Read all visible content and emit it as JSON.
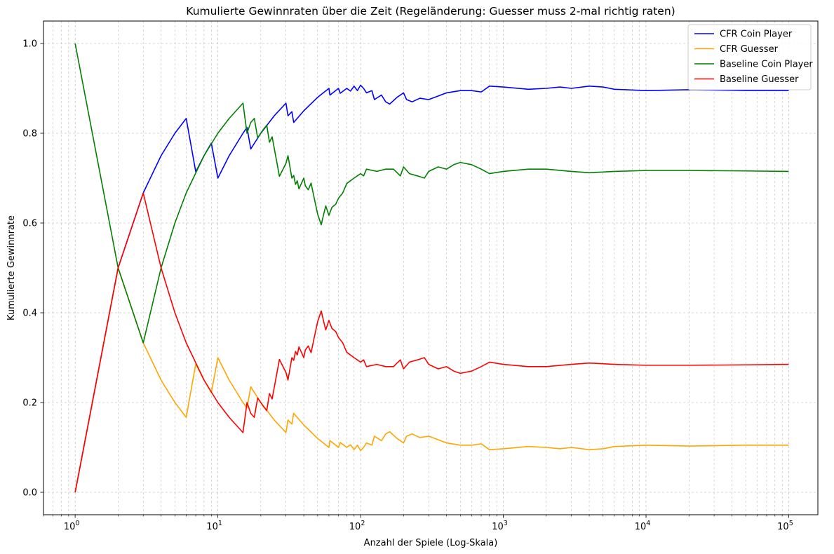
{
  "chart_data": {
    "type": "line",
    "title": "Kumulierte Gewinnraten über die Zeit (Regeländerung: Guesser muss 2-mal richtig raten)",
    "xlabel": "Anzahl der Spiele (Log-Skala)",
    "ylabel": "Kumulierte Gewinnrate",
    "xscale": "log",
    "xlim": [
      0.6,
      160000
    ],
    "ylim": [
      -0.05,
      1.05
    ],
    "x_ticks": [
      {
        "value": 1,
        "label": "10",
        "exp": "0"
      },
      {
        "value": 10,
        "label": "10",
        "exp": "1"
      },
      {
        "value": 100,
        "label": "10",
        "exp": "2"
      },
      {
        "value": 1000,
        "label": "10",
        "exp": "3"
      },
      {
        "value": 10000,
        "label": "10",
        "exp": "4"
      },
      {
        "value": 100000,
        "label": "10",
        "exp": "5"
      }
    ],
    "y_ticks": [
      {
        "value": 0.0,
        "label": "0.0"
      },
      {
        "value": 0.2,
        "label": "0.2"
      },
      {
        "value": 0.4,
        "label": "0.4"
      },
      {
        "value": 0.6,
        "label": "0.6"
      },
      {
        "value": 0.8,
        "label": "0.8"
      },
      {
        "value": 1.0,
        "label": "1.0"
      }
    ],
    "grid": true,
    "legend_position": "top-right",
    "series": [
      {
        "name": "CFR Coin Player",
        "color": "#0000ff",
        "points": [
          [
            1,
            0
          ],
          [
            2,
            0.5
          ],
          [
            3,
            0.667
          ],
          [
            4,
            0.75
          ],
          [
            5,
            0.8
          ],
          [
            6,
            0.833
          ],
          [
            7,
            0.714
          ],
          [
            8,
            0.75
          ],
          [
            9,
            0.778
          ],
          [
            10,
            0.7
          ],
          [
            12,
            0.75
          ],
          [
            15,
            0.8
          ],
          [
            16,
            0.813
          ],
          [
            17,
            0.765
          ],
          [
            20,
            0.8
          ],
          [
            25,
            0.84
          ],
          [
            30,
            0.867
          ],
          [
            31,
            0.839
          ],
          [
            33,
            0.848
          ],
          [
            34,
            0.824
          ],
          [
            40,
            0.85
          ],
          [
            50,
            0.88
          ],
          [
            60,
            0.9
          ],
          [
            61,
            0.885
          ],
          [
            70,
            0.9
          ],
          [
            72,
            0.889
          ],
          [
            80,
            0.9
          ],
          [
            85,
            0.894
          ],
          [
            90,
            0.905
          ],
          [
            95,
            0.895
          ],
          [
            100,
            0.907
          ],
          [
            105,
            0.9
          ],
          [
            110,
            0.89
          ],
          [
            120,
            0.895
          ],
          [
            125,
            0.875
          ],
          [
            140,
            0.885
          ],
          [
            150,
            0.87
          ],
          [
            160,
            0.865
          ],
          [
            180,
            0.88
          ],
          [
            200,
            0.89
          ],
          [
            210,
            0.875
          ],
          [
            230,
            0.87
          ],
          [
            260,
            0.878
          ],
          [
            300,
            0.875
          ],
          [
            350,
            0.883
          ],
          [
            400,
            0.89
          ],
          [
            500,
            0.895
          ],
          [
            600,
            0.895
          ],
          [
            700,
            0.892
          ],
          [
            800,
            0.905
          ],
          [
            1000,
            0.903
          ],
          [
            1500,
            0.898
          ],
          [
            2000,
            0.9
          ],
          [
            2500,
            0.903
          ],
          [
            3000,
            0.9
          ],
          [
            4000,
            0.905
          ],
          [
            5000,
            0.903
          ],
          [
            6000,
            0.898
          ],
          [
            10000,
            0.895
          ],
          [
            20000,
            0.897
          ],
          [
            50000,
            0.895
          ],
          [
            100000,
            0.895
          ]
        ]
      },
      {
        "name": "CFR Guesser",
        "color": "#ffa500",
        "points": [
          [
            1,
            0
          ],
          [
            2,
            0.5
          ],
          [
            3,
            0.333
          ],
          [
            4,
            0.25
          ],
          [
            5,
            0.2
          ],
          [
            6,
            0.167
          ],
          [
            7,
            0.286
          ],
          [
            8,
            0.25
          ],
          [
            9,
            0.222
          ],
          [
            10,
            0.3
          ],
          [
            12,
            0.25
          ],
          [
            15,
            0.2
          ],
          [
            16,
            0.188
          ],
          [
            17,
            0.235
          ],
          [
            20,
            0.2
          ],
          [
            25,
            0.16
          ],
          [
            30,
            0.133
          ],
          [
            31,
            0.161
          ],
          [
            33,
            0.152
          ],
          [
            34,
            0.176
          ],
          [
            40,
            0.15
          ],
          [
            50,
            0.12
          ],
          [
            60,
            0.1
          ],
          [
            61,
            0.115
          ],
          [
            70,
            0.1
          ],
          [
            72,
            0.111
          ],
          [
            80,
            0.1
          ],
          [
            85,
            0.106
          ],
          [
            90,
            0.095
          ],
          [
            95,
            0.105
          ],
          [
            100,
            0.093
          ],
          [
            105,
            0.1
          ],
          [
            110,
            0.11
          ],
          [
            120,
            0.105
          ],
          [
            125,
            0.125
          ],
          [
            140,
            0.115
          ],
          [
            150,
            0.13
          ],
          [
            160,
            0.135
          ],
          [
            180,
            0.12
          ],
          [
            200,
            0.11
          ],
          [
            210,
            0.125
          ],
          [
            230,
            0.13
          ],
          [
            260,
            0.122
          ],
          [
            300,
            0.125
          ],
          [
            350,
            0.117
          ],
          [
            400,
            0.11
          ],
          [
            500,
            0.105
          ],
          [
            600,
            0.105
          ],
          [
            700,
            0.108
          ],
          [
            800,
            0.095
          ],
          [
            1000,
            0.097
          ],
          [
            1500,
            0.102
          ],
          [
            2000,
            0.1
          ],
          [
            2500,
            0.097
          ],
          [
            3000,
            0.1
          ],
          [
            4000,
            0.095
          ],
          [
            5000,
            0.097
          ],
          [
            6000,
            0.102
          ],
          [
            10000,
            0.105
          ],
          [
            20000,
            0.103
          ],
          [
            50000,
            0.105
          ],
          [
            100000,
            0.105
          ]
        ]
      },
      {
        "name": "Baseline Coin Player",
        "color": "#008000",
        "points": [
          [
            1,
            1
          ],
          [
            2,
            0.5
          ],
          [
            3,
            0.333
          ],
          [
            4,
            0.5
          ],
          [
            5,
            0.6
          ],
          [
            6,
            0.667
          ],
          [
            8,
            0.75
          ],
          [
            10,
            0.8
          ],
          [
            12,
            0.833
          ],
          [
            15,
            0.867
          ],
          [
            16,
            0.8
          ],
          [
            17,
            0.824
          ],
          [
            18,
            0.833
          ],
          [
            19,
            0.79
          ],
          [
            21,
            0.81
          ],
          [
            22,
            0.818
          ],
          [
            23,
            0.78
          ],
          [
            24,
            0.792
          ],
          [
            27,
            0.704
          ],
          [
            30,
            0.733
          ],
          [
            31,
            0.75
          ],
          [
            33,
            0.7
          ],
          [
            34,
            0.706
          ],
          [
            35,
            0.686
          ],
          [
            36,
            0.694
          ],
          [
            37,
            0.676
          ],
          [
            40,
            0.7
          ],
          [
            41,
            0.683
          ],
          [
            43,
            0.674
          ],
          [
            45,
            0.689
          ],
          [
            47,
            0.66
          ],
          [
            50,
            0.62
          ],
          [
            53,
            0.596
          ],
          [
            55,
            0.618
          ],
          [
            57,
            0.638
          ],
          [
            60,
            0.617
          ],
          [
            63,
            0.635
          ],
          [
            67,
            0.642
          ],
          [
            70,
            0.655
          ],
          [
            75,
            0.667
          ],
          [
            80,
            0.688
          ],
          [
            90,
            0.7
          ],
          [
            100,
            0.71
          ],
          [
            105,
            0.705
          ],
          [
            110,
            0.72
          ],
          [
            130,
            0.715
          ],
          [
            150,
            0.72
          ],
          [
            170,
            0.72
          ],
          [
            190,
            0.705
          ],
          [
            200,
            0.725
          ],
          [
            220,
            0.71
          ],
          [
            250,
            0.705
          ],
          [
            280,
            0.7
          ],
          [
            300,
            0.715
          ],
          [
            350,
            0.725
          ],
          [
            400,
            0.72
          ],
          [
            450,
            0.73
          ],
          [
            500,
            0.735
          ],
          [
            600,
            0.73
          ],
          [
            700,
            0.72
          ],
          [
            800,
            0.71
          ],
          [
            1000,
            0.715
          ],
          [
            1500,
            0.72
          ],
          [
            2000,
            0.72
          ],
          [
            3000,
            0.715
          ],
          [
            4000,
            0.712
          ],
          [
            6000,
            0.715
          ],
          [
            10000,
            0.717
          ],
          [
            20000,
            0.717
          ],
          [
            50000,
            0.716
          ],
          [
            100000,
            0.715
          ]
        ]
      },
      {
        "name": "Baseline Guesser",
        "color": "#ff0000",
        "points": [
          [
            1,
            0
          ],
          [
            2,
            0.5
          ],
          [
            3,
            0.667
          ],
          [
            4,
            0.5
          ],
          [
            5,
            0.4
          ],
          [
            6,
            0.333
          ],
          [
            8,
            0.25
          ],
          [
            10,
            0.2
          ],
          [
            12,
            0.167
          ],
          [
            15,
            0.133
          ],
          [
            16,
            0.2
          ],
          [
            17,
            0.176
          ],
          [
            18,
            0.167
          ],
          [
            19,
            0.21
          ],
          [
            21,
            0.19
          ],
          [
            22,
            0.182
          ],
          [
            23,
            0.22
          ],
          [
            24,
            0.208
          ],
          [
            27,
            0.296
          ],
          [
            30,
            0.267
          ],
          [
            31,
            0.25
          ],
          [
            33,
            0.3
          ],
          [
            34,
            0.294
          ],
          [
            35,
            0.314
          ],
          [
            36,
            0.306
          ],
          [
            37,
            0.324
          ],
          [
            40,
            0.3
          ],
          [
            41,
            0.317
          ],
          [
            43,
            0.326
          ],
          [
            45,
            0.311
          ],
          [
            47,
            0.34
          ],
          [
            50,
            0.38
          ],
          [
            53,
            0.404
          ],
          [
            55,
            0.382
          ],
          [
            57,
            0.362
          ],
          [
            60,
            0.383
          ],
          [
            63,
            0.365
          ],
          [
            67,
            0.358
          ],
          [
            70,
            0.345
          ],
          [
            75,
            0.333
          ],
          [
            80,
            0.312
          ],
          [
            90,
            0.3
          ],
          [
            100,
            0.29
          ],
          [
            105,
            0.295
          ],
          [
            110,
            0.28
          ],
          [
            130,
            0.285
          ],
          [
            150,
            0.28
          ],
          [
            170,
            0.28
          ],
          [
            190,
            0.295
          ],
          [
            200,
            0.275
          ],
          [
            220,
            0.29
          ],
          [
            250,
            0.295
          ],
          [
            280,
            0.3
          ],
          [
            300,
            0.285
          ],
          [
            350,
            0.275
          ],
          [
            400,
            0.28
          ],
          [
            450,
            0.27
          ],
          [
            500,
            0.265
          ],
          [
            600,
            0.27
          ],
          [
            700,
            0.28
          ],
          [
            800,
            0.29
          ],
          [
            1000,
            0.285
          ],
          [
            1500,
            0.28
          ],
          [
            2000,
            0.28
          ],
          [
            3000,
            0.285
          ],
          [
            4000,
            0.288
          ],
          [
            6000,
            0.285
          ],
          [
            10000,
            0.283
          ],
          [
            20000,
            0.283
          ],
          [
            50000,
            0.284
          ],
          [
            100000,
            0.285
          ]
        ]
      }
    ]
  }
}
